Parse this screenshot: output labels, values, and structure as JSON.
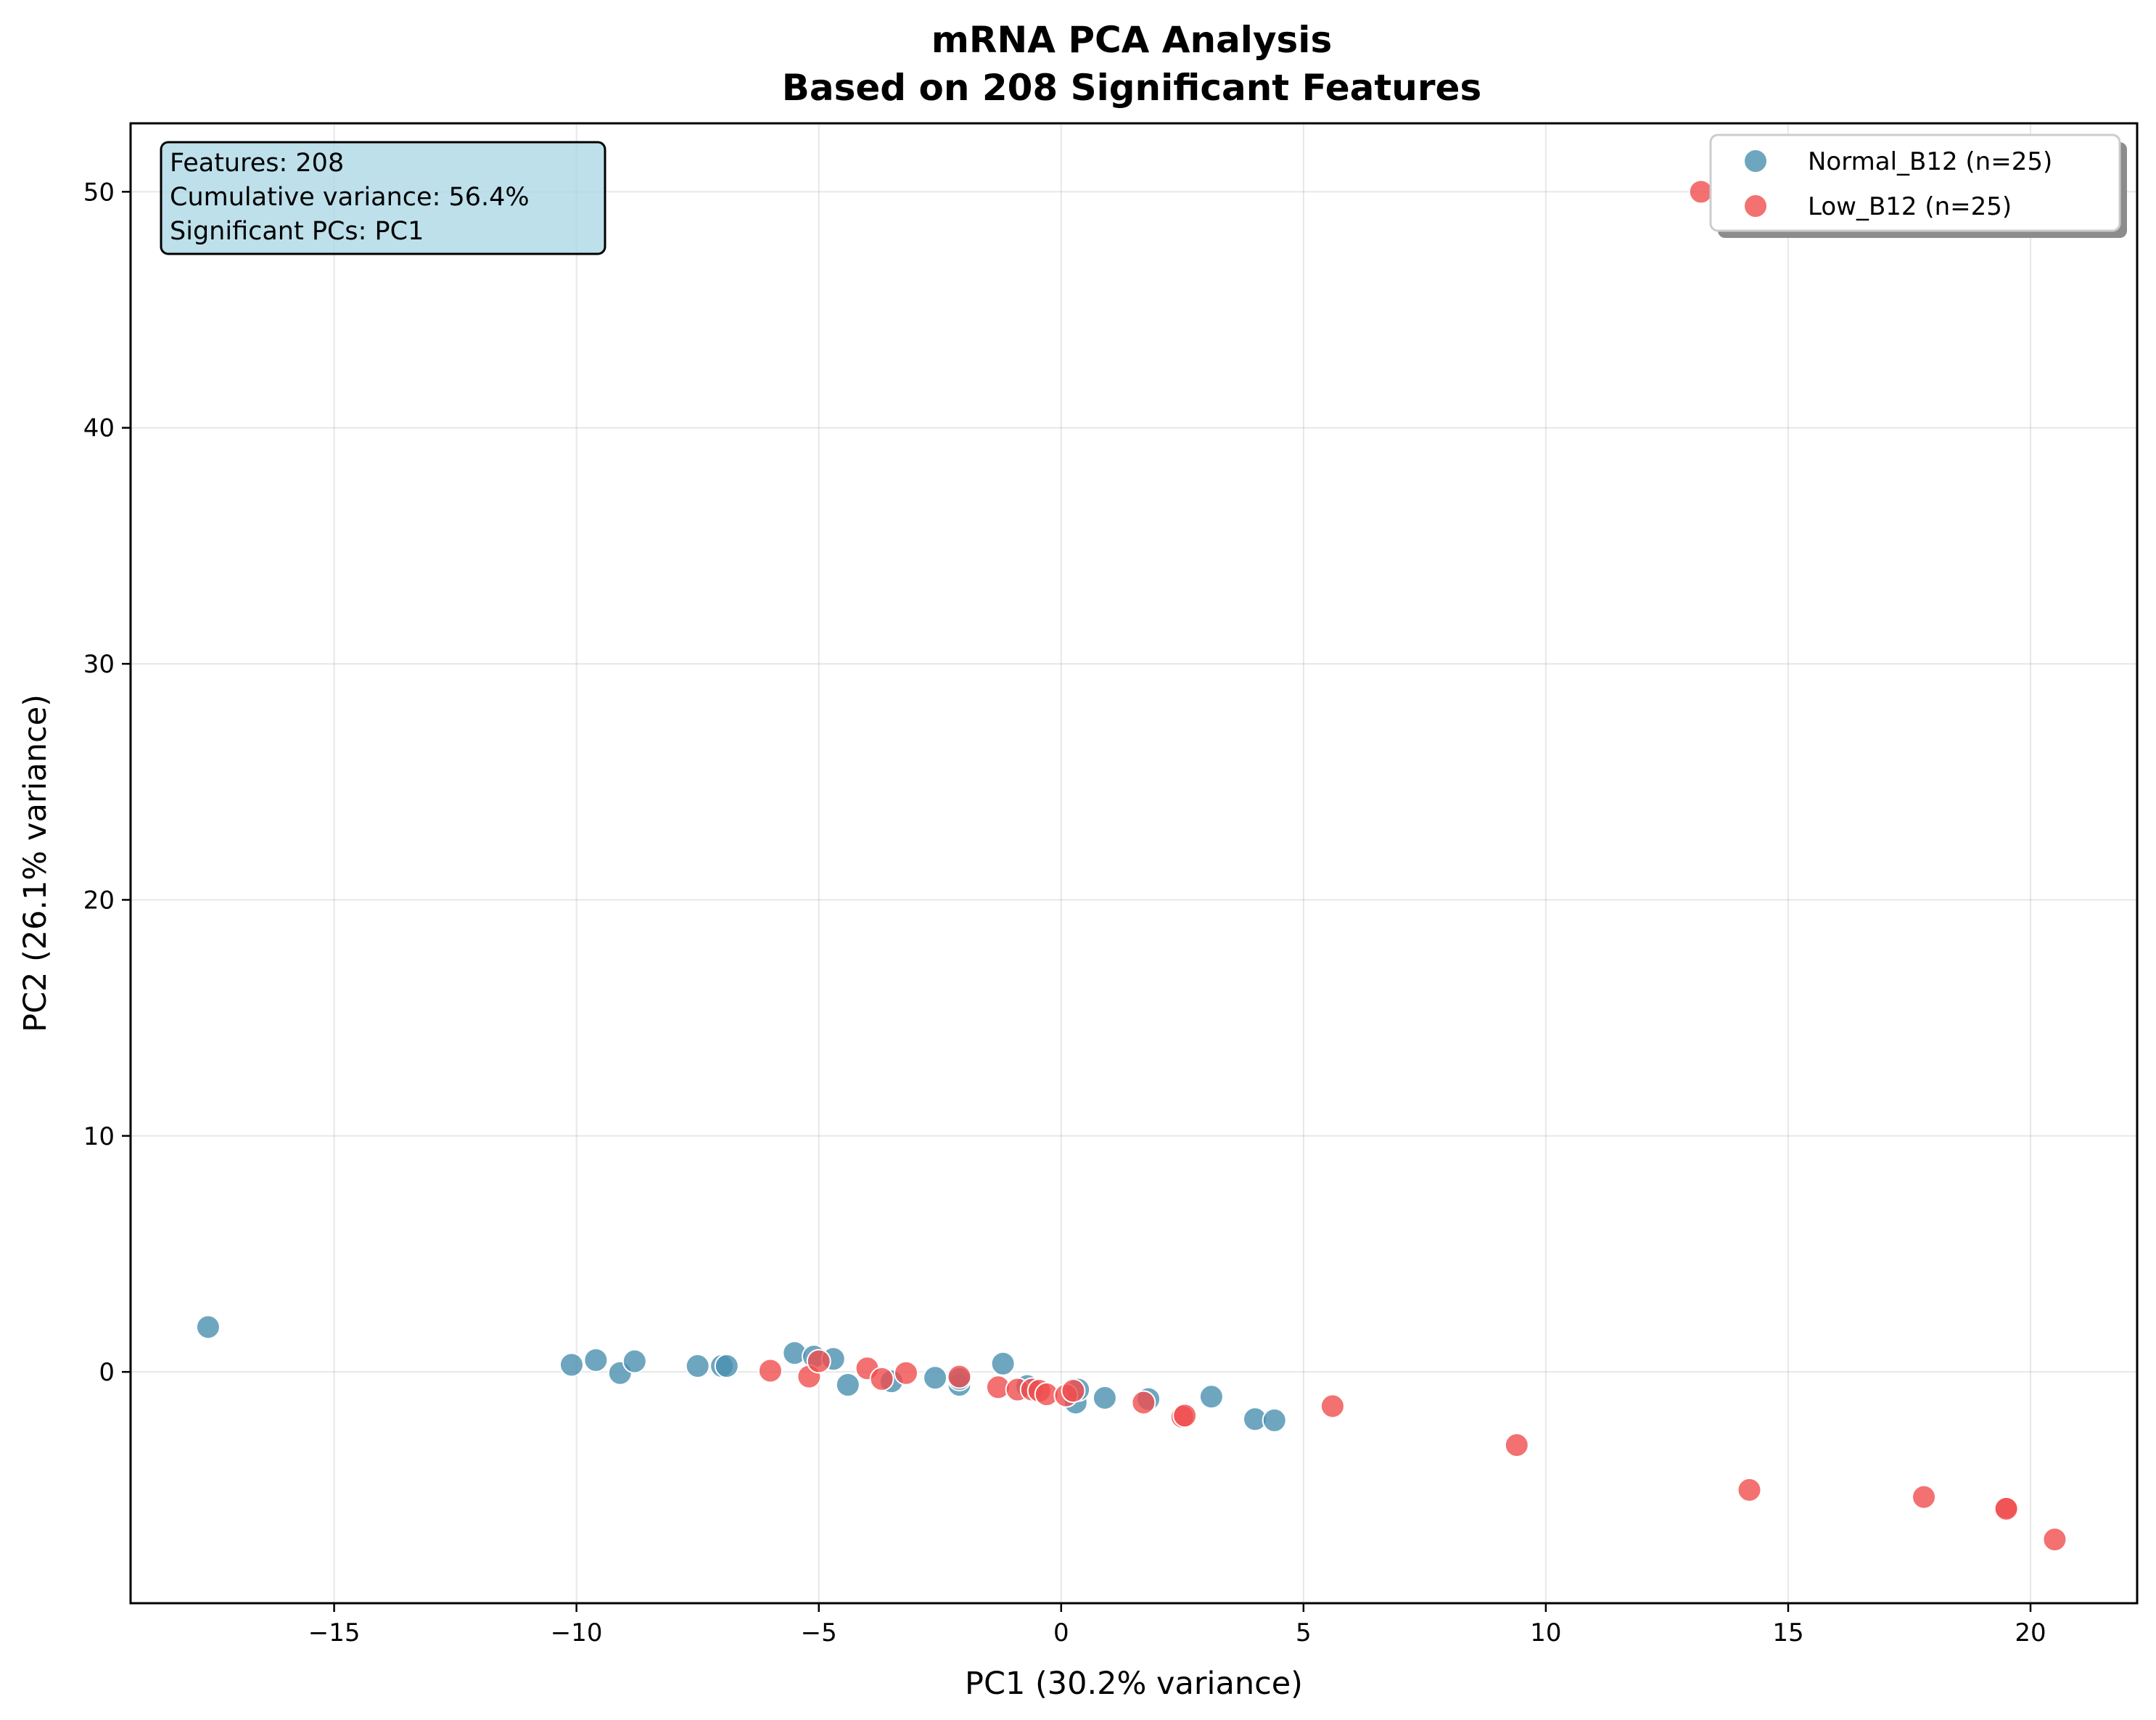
{
  "chart_data": {
    "type": "scatter",
    "title": "mRNA PCA Analysis",
    "subtitle": "Based on 208 Significant Features",
    "xlabel": "PC1 (30.2% variance)",
    "ylabel": "PC2 (26.1% variance)",
    "xlim": [
      -19.2,
      22.2
    ],
    "ylim": [
      -9.8,
      52.9
    ],
    "xticks": [
      -15,
      -10,
      -5,
      0,
      5,
      10,
      15,
      20
    ],
    "yticks": [
      0,
      10,
      20,
      30,
      40,
      50
    ],
    "xtick_labels": [
      "−15",
      "−10",
      "−5",
      "0",
      "5",
      "10",
      "15",
      "20"
    ],
    "ytick_labels": [
      "0",
      "10",
      "20",
      "30",
      "40",
      "50"
    ],
    "grid": true,
    "legend_position": "top-right",
    "info_box": {
      "position": "top-left",
      "lines": [
        "Features: 208",
        "Cumulative variance: 56.4%",
        "Significant PCs: PC1"
      ]
    },
    "series": [
      {
        "name": "Normal_B12 (n=25)",
        "color": "#4a90b0",
        "points": [
          [
            -17.6,
            1.9
          ],
          [
            -10.1,
            0.3
          ],
          [
            -9.6,
            0.5
          ],
          [
            -9.1,
            -0.05
          ],
          [
            -8.8,
            0.45
          ],
          [
            -7.5,
            0.25
          ],
          [
            -7.0,
            0.25
          ],
          [
            -6.9,
            0.25
          ],
          [
            -5.5,
            0.8
          ],
          [
            -5.1,
            0.65
          ],
          [
            -4.7,
            0.55
          ],
          [
            -4.4,
            -0.55
          ],
          [
            -3.5,
            -0.4
          ],
          [
            -2.6,
            -0.25
          ],
          [
            -2.1,
            -0.55
          ],
          [
            -2.1,
            -0.3
          ],
          [
            -1.2,
            0.35
          ],
          [
            -0.7,
            -0.6
          ],
          [
            0.3,
            -1.3
          ],
          [
            0.35,
            -0.75
          ],
          [
            0.9,
            -1.1
          ],
          [
            1.8,
            -1.15
          ],
          [
            3.1,
            -1.05
          ],
          [
            4.0,
            -2.0
          ],
          [
            4.4,
            -2.05
          ]
        ]
      },
      {
        "name": "Low_B12 (n=25)",
        "color": "#f04e4e",
        "points": [
          [
            13.2,
            50.0
          ],
          [
            -6.0,
            0.05
          ],
          [
            -5.2,
            -0.2
          ],
          [
            -5.0,
            0.45
          ],
          [
            -4.0,
            0.15
          ],
          [
            -3.7,
            -0.3
          ],
          [
            -3.2,
            -0.05
          ],
          [
            -2.1,
            -0.2
          ],
          [
            -1.3,
            -0.65
          ],
          [
            -0.9,
            -0.75
          ],
          [
            -0.6,
            -0.75
          ],
          [
            -0.45,
            -0.8
          ],
          [
            -0.3,
            -0.95
          ],
          [
            0.1,
            -1.0
          ],
          [
            0.25,
            -0.8
          ],
          [
            1.7,
            -1.3
          ],
          [
            2.5,
            -1.9
          ],
          [
            2.55,
            -1.85
          ],
          [
            5.6,
            -1.45
          ],
          [
            9.4,
            -3.1
          ],
          [
            14.2,
            -5.0
          ],
          [
            17.8,
            -5.3
          ],
          [
            19.5,
            -5.75
          ],
          [
            19.5,
            -5.8
          ],
          [
            20.5,
            -7.1
          ]
        ]
      }
    ]
  }
}
